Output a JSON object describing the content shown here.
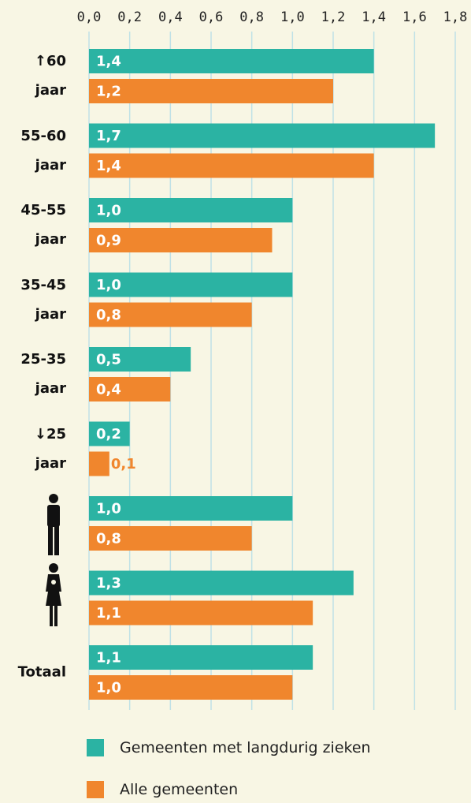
{
  "chart_data": {
    "type": "bar",
    "orientation": "horizontal",
    "categories": [
      "↑60 jaar",
      "55-60 jaar",
      "45-55 jaar",
      "35-45 jaar",
      "25-35 jaar",
      "↓25 jaar",
      null,
      null,
      "Totaal"
    ],
    "series": [
      {
        "name": "Gemeenten met langdurig zieken",
        "color": "#2bb3a3",
        "values": [
          1.4,
          1.7,
          1.0,
          1.0,
          0.5,
          0.2,
          1.0,
          1.3,
          1.1
        ],
        "value_labels": [
          "1,4",
          "1,7",
          "1,0",
          "1,0",
          "0,5",
          "0,2",
          "1,0",
          "1,3",
          "1,1"
        ]
      },
      {
        "name": "Alle gemeenten",
        "color": "#f0862d",
        "values": [
          1.2,
          1.4,
          0.9,
          0.8,
          0.4,
          0.1,
          0.8,
          1.1,
          1.0
        ],
        "value_labels": [
          "1,2",
          "1,4",
          "0,9",
          "0,8",
          "0,4",
          "0,1",
          "0,8",
          "1,1",
          "1,0"
        ]
      }
    ],
    "xlim": [
      0,
      1.8
    ],
    "xticks": [
      {
        "value": 0,
        "label": "0,0"
      },
      {
        "value": 0.2,
        "label": "0,2"
      },
      {
        "value": 0.4,
        "label": "0,4"
      },
      {
        "value": 0.6,
        "label": "0,6"
      },
      {
        "value": 0.8,
        "label": "0,8"
      },
      {
        "value": 1.0,
        "label": "1,0"
      },
      {
        "value": 1.2,
        "label": "1,2"
      },
      {
        "value": 1.4,
        "label": "1,4"
      },
      {
        "value": 1.6,
        "label": "1,6"
      },
      {
        "value": 1.8,
        "label": "1,8"
      }
    ],
    "grid": true
  }
}
